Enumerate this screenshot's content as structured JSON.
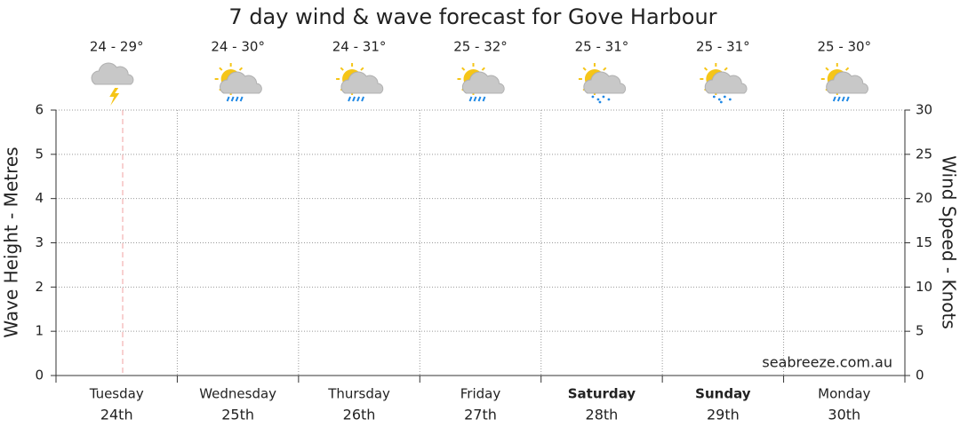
{
  "chart_data": {
    "type": "line",
    "title": "7 day wind & wave forecast for Gove Harbour",
    "ylabel": "Wave Height - Metres",
    "y2label": "Wind Speed - Knots",
    "watermark": "seabreeze.com.au",
    "categories": [
      "Tuesday",
      "Wednesday",
      "Thursday",
      "Friday",
      "Saturday",
      "Sunday",
      "Monday"
    ],
    "dates": [
      "24th",
      "25th",
      "26th",
      "27th",
      "28th",
      "29th",
      "30th"
    ],
    "temperatures": [
      "24 - 29°",
      "24 - 30°",
      "24 - 31°",
      "25 - 32°",
      "25 - 31°",
      "25 - 31°",
      "25 - 30°"
    ],
    "icons": [
      "storm",
      "rain",
      "rain",
      "rain",
      "showers",
      "showers",
      "rain"
    ],
    "bold": [
      false,
      false,
      false,
      false,
      true,
      true,
      false
    ],
    "ylim": [
      0,
      6
    ],
    "yticks": [
      0,
      1,
      2,
      3,
      4,
      5,
      6
    ],
    "y2lim": [
      0,
      30
    ],
    "y2ticks": [
      0,
      5,
      10,
      15,
      20,
      25,
      30
    ],
    "grid": true,
    "series": []
  }
}
